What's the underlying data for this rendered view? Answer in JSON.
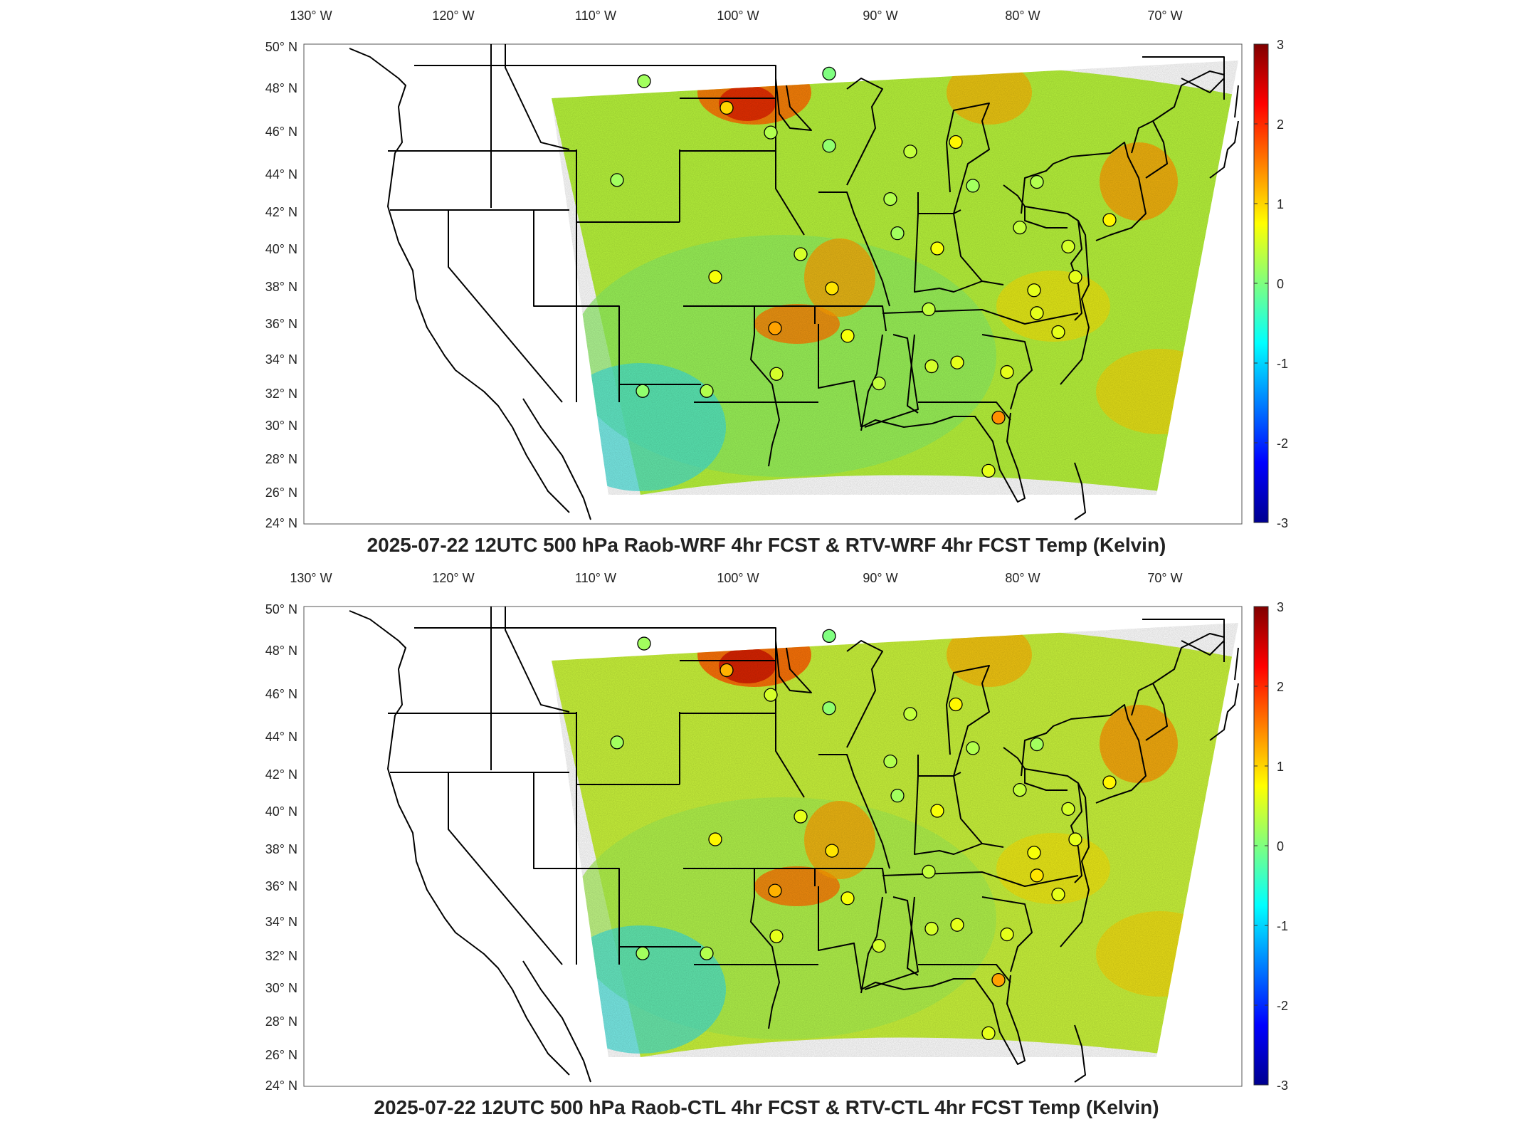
{
  "lon_labels": [
    "130° W",
    "120° W",
    "110° W",
    "100° W",
    "90° W",
    "80° W",
    "70° W"
  ],
  "lat_labels": [
    "50° N",
    "48° N",
    "46° N",
    "44° N",
    "42° N",
    "40° N",
    "38° N",
    "36° N",
    "34° N",
    "32° N",
    "30° N",
    "28° N",
    "26° N",
    "24° N"
  ],
  "colorbar": {
    "min": -3,
    "max": 3,
    "ticks": [
      "3",
      "2",
      "1",
      "0",
      "-1",
      "-2",
      "-3"
    ],
    "unit": "Kelvin",
    "colormap": "jet",
    "colors": [
      "#00008f",
      "#0000ff",
      "#00ffff",
      "#ffff00",
      "#ff0000",
      "#800000"
    ]
  },
  "panels": [
    {
      "title": "2025-07-22 12UTC 500 hPa Raob-WRF 4hr FCST & RTV-WRF 4hr FCST Temp (Kelvin)",
      "stations": [
        {
          "lon": -106.6,
          "lat": 48.2,
          "value": 0.2
        },
        {
          "lon": -100.8,
          "lat": 46.8,
          "value": 1.0
        },
        {
          "lon": -97.7,
          "lat": 45.5,
          "value": 0.3
        },
        {
          "lon": -93.6,
          "lat": 48.6,
          "value": 0.0
        },
        {
          "lon": -93.6,
          "lat": 44.8,
          "value": 0.1
        },
        {
          "lon": -108.5,
          "lat": 43.0,
          "value": 0.2
        },
        {
          "lon": -89.3,
          "lat": 42.0,
          "value": 0.3
        },
        {
          "lon": -87.9,
          "lat": 44.5,
          "value": 0.4
        },
        {
          "lon": -84.7,
          "lat": 45.0,
          "value": 0.8
        },
        {
          "lon": -83.5,
          "lat": 42.7,
          "value": 0.2
        },
        {
          "lon": -79.0,
          "lat": 42.9,
          "value": 0.3
        },
        {
          "lon": -88.8,
          "lat": 40.2,
          "value": 0.2
        },
        {
          "lon": -80.2,
          "lat": 40.5,
          "value": 0.4
        },
        {
          "lon": -95.6,
          "lat": 39.1,
          "value": 0.5
        },
        {
          "lon": -86.0,
          "lat": 39.4,
          "value": 0.7
        },
        {
          "lon": -101.6,
          "lat": 37.9,
          "value": 0.7
        },
        {
          "lon": -93.4,
          "lat": 37.3,
          "value": 0.9
        },
        {
          "lon": -76.8,
          "lat": 39.5,
          "value": 0.5
        },
        {
          "lon": -76.3,
          "lat": 37.9,
          "value": 0.6
        },
        {
          "lon": -79.2,
          "lat": 37.2,
          "value": 0.6
        },
        {
          "lon": -97.4,
          "lat": 35.2,
          "value": 1.3
        },
        {
          "lon": -92.3,
          "lat": 34.8,
          "value": 0.7
        },
        {
          "lon": -86.6,
          "lat": 36.2,
          "value": 0.4
        },
        {
          "lon": -79.0,
          "lat": 36.0,
          "value": 0.6
        },
        {
          "lon": -77.5,
          "lat": 35.0,
          "value": 0.6
        },
        {
          "lon": -106.7,
          "lat": 31.9,
          "value": 0.1
        },
        {
          "lon": -102.2,
          "lat": 31.9,
          "value": 0.3
        },
        {
          "lon": -97.3,
          "lat": 32.8,
          "value": 0.5
        },
        {
          "lon": -90.1,
          "lat": 32.3,
          "value": 0.4
        },
        {
          "lon": -86.4,
          "lat": 33.2,
          "value": 0.5
        },
        {
          "lon": -84.6,
          "lat": 33.4,
          "value": 0.6
        },
        {
          "lon": -81.1,
          "lat": 32.9,
          "value": 0.6
        },
        {
          "lon": -81.7,
          "lat": 30.5,
          "value": 1.4
        },
        {
          "lon": -82.4,
          "lat": 27.7,
          "value": 0.6
        },
        {
          "lon": -73.9,
          "lat": 40.9,
          "value": 0.8
        }
      ]
    },
    {
      "title": "2025-07-22 12UTC 500 hPa Raob-CTL 4hr FCST & RTV-CTL 4hr FCST Temp (Kelvin)",
      "stations": [
        {
          "lon": -106.6,
          "lat": 48.2,
          "value": 0.2
        },
        {
          "lon": -100.8,
          "lat": 46.8,
          "value": 1.2
        },
        {
          "lon": -97.7,
          "lat": 45.5,
          "value": 0.5
        },
        {
          "lon": -93.6,
          "lat": 48.6,
          "value": 0.0
        },
        {
          "lon": -93.6,
          "lat": 44.8,
          "value": 0.1
        },
        {
          "lon": -108.5,
          "lat": 43.0,
          "value": 0.2
        },
        {
          "lon": -89.3,
          "lat": 42.0,
          "value": 0.3
        },
        {
          "lon": -87.9,
          "lat": 44.5,
          "value": 0.4
        },
        {
          "lon": -84.7,
          "lat": 45.0,
          "value": 0.8
        },
        {
          "lon": -83.5,
          "lat": 42.7,
          "value": 0.3
        },
        {
          "lon": -79.0,
          "lat": 42.9,
          "value": 0.2
        },
        {
          "lon": -88.8,
          "lat": 40.2,
          "value": 0.2
        },
        {
          "lon": -80.2,
          "lat": 40.5,
          "value": 0.4
        },
        {
          "lon": -95.6,
          "lat": 39.1,
          "value": 0.6
        },
        {
          "lon": -86.0,
          "lat": 39.4,
          "value": 0.7
        },
        {
          "lon": -101.6,
          "lat": 37.9,
          "value": 0.8
        },
        {
          "lon": -93.4,
          "lat": 37.3,
          "value": 0.9
        },
        {
          "lon": -76.8,
          "lat": 39.5,
          "value": 0.5
        },
        {
          "lon": -76.3,
          "lat": 37.9,
          "value": 0.6
        },
        {
          "lon": -79.2,
          "lat": 37.2,
          "value": 0.7
        },
        {
          "lon": -97.4,
          "lat": 35.2,
          "value": 1.2
        },
        {
          "lon": -92.3,
          "lat": 34.8,
          "value": 0.7
        },
        {
          "lon": -86.6,
          "lat": 36.2,
          "value": 0.4
        },
        {
          "lon": -79.0,
          "lat": 36.0,
          "value": 0.9
        },
        {
          "lon": -77.5,
          "lat": 35.0,
          "value": 0.6
        },
        {
          "lon": -106.7,
          "lat": 31.9,
          "value": 0.2
        },
        {
          "lon": -102.2,
          "lat": 31.9,
          "value": 0.3
        },
        {
          "lon": -97.3,
          "lat": 32.8,
          "value": 0.6
        },
        {
          "lon": -90.1,
          "lat": 32.3,
          "value": 0.5
        },
        {
          "lon": -86.4,
          "lat": 33.2,
          "value": 0.5
        },
        {
          "lon": -84.6,
          "lat": 33.4,
          "value": 0.6
        },
        {
          "lon": -81.1,
          "lat": 32.9,
          "value": 0.6
        },
        {
          "lon": -81.7,
          "lat": 30.5,
          "value": 1.3
        },
        {
          "lon": -82.4,
          "lat": 27.7,
          "value": 0.6
        },
        {
          "lon": -73.9,
          "lat": 40.9,
          "value": 0.8
        }
      ]
    }
  ]
}
